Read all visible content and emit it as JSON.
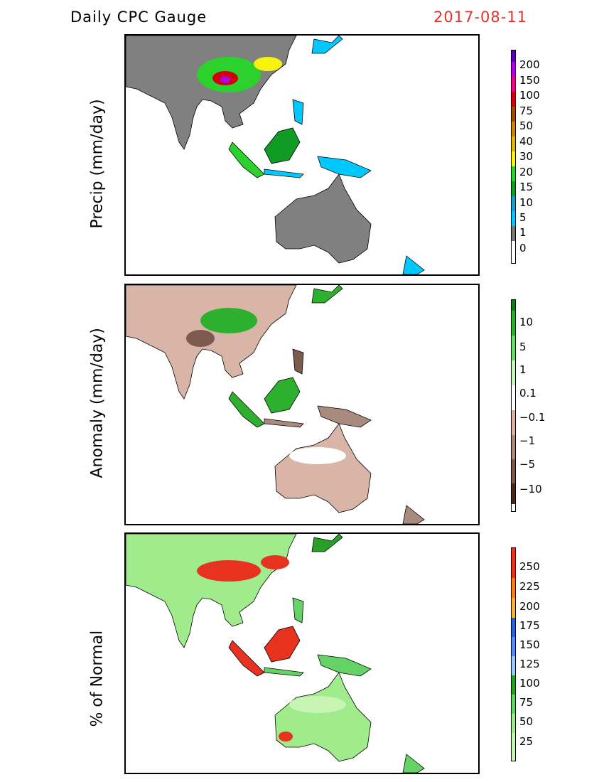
{
  "header": {
    "title": "Daily CPC Gauge",
    "date": "2017-08-11"
  },
  "panels": [
    {
      "id": "precip",
      "ylabel": "Precip (mm/day)",
      "colorbar": {
        "colors": [
          "#777777",
          "#00c8ff",
          "#1e9ec8",
          "#0f9b24",
          "#2dd12d",
          "#f8f30a",
          "#e2b705",
          "#c28a05",
          "#9e4f00",
          "#d2000e",
          "#f0008c",
          "#b400e6",
          "#5a00b4"
        ],
        "labels": [
          "0",
          "1",
          "5",
          "10",
          "15",
          "20",
          "30",
          "40",
          "50",
          "75",
          "100",
          "150",
          "200"
        ]
      }
    },
    {
      "id": "anomaly",
      "ylabel": "Anomaly (mm/day)",
      "colorbar": {
        "colors": [
          "#4a2a1e",
          "#7d5a4e",
          "#a88a7e",
          "#d8b5a6",
          "#ffffff",
          "#c8f5c0",
          "#6ed86c",
          "#2db02d",
          "#0f7d1e"
        ],
        "labels": [
          "−10",
          "−5",
          "−1",
          "−0.1",
          "0.1",
          "1",
          "5",
          "10"
        ]
      }
    },
    {
      "id": "percent",
      "ylabel": "% of Normal",
      "colorbar": {
        "colors": [
          "#c8f5b4",
          "#a0eb8c",
          "#64d264",
          "#28a028",
          "#a0c8ff",
          "#5a8cf0",
          "#2864d2",
          "#f5b43c",
          "#f58214",
          "#e6321e"
        ],
        "labels": [
          "25",
          "50",
          "75",
          "100",
          "125",
          "150",
          "175",
          "200",
          "225",
          "250"
        ]
      }
    }
  ]
}
